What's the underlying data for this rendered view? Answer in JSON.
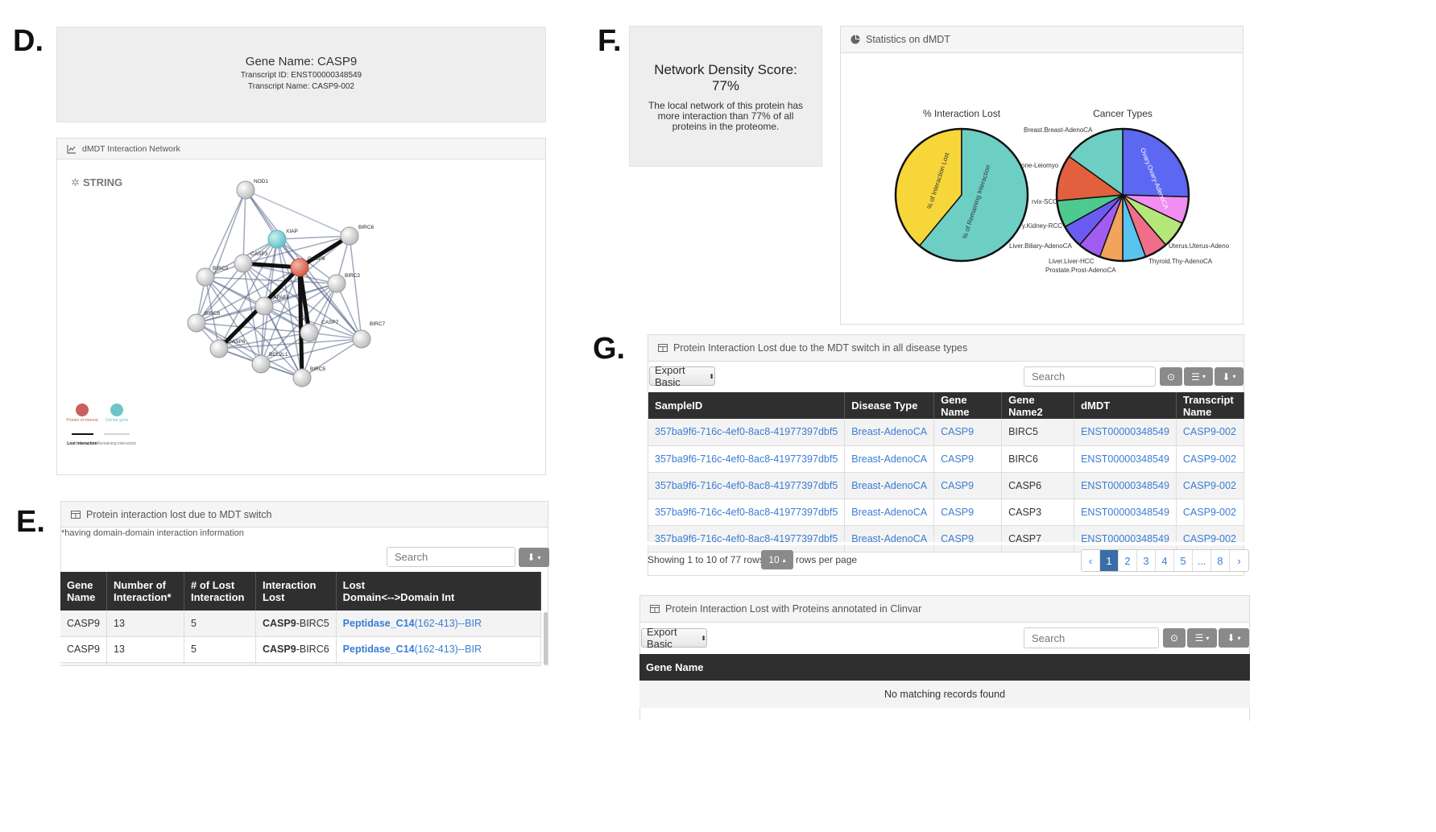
{
  "letters": {
    "d": "D.",
    "e": "E.",
    "f": "F.",
    "g": "G."
  },
  "gene_box": {
    "title": "Gene Name: CASP9",
    "transcript_id": "Transcript ID: ENST00000348549",
    "transcript_name": "Transcript Name: CASP9-002"
  },
  "network": {
    "header": "dMDT Interaction Network",
    "logo": "STRING",
    "nodes": [
      "NOD1",
      "XIAP",
      "BIRC6",
      "CASP3",
      "CASP9",
      "BIRC3",
      "BIRC2",
      "APAF1",
      "BIRC8",
      "CASP7",
      "BIRC7",
      "CASP6",
      "BCL2L1",
      "BIRC5"
    ],
    "legend": {
      "protein_of_interest": "Protein of interest",
      "clinvar_gene": "ClinVar gene",
      "lost_interaction": "Lost interaction",
      "remaining_interaction": "Remaining interaction"
    }
  },
  "density": {
    "title_line1": "Network Density Score:",
    "title_line2": "77%",
    "desc_line1": "The local network of this protein has",
    "desc_line2": "more interaction than 77% of all",
    "desc_line3": "proteins in the proteome."
  },
  "stats": {
    "header": "Statistics on dMDT",
    "colors": {
      "lost": "#f7d63a",
      "remaining": "#6dcfc4"
    }
  },
  "chart_data": [
    {
      "type": "pie",
      "title": "% Interaction Lost",
      "slices": [
        {
          "label": "% of Interaction Lost",
          "value": 39,
          "color": "#f7d63a"
        },
        {
          "label": "% of Remaining Interaction",
          "value": 61,
          "color": "#6dcfc4"
        }
      ]
    },
    {
      "type": "pie",
      "title": "Cancer Types",
      "slices": [
        {
          "label": "Ovary.Ovary-AdenoCA",
          "value": 27,
          "color": "#5c67f2"
        },
        {
          "label": "Uterus.Uterus-AdenoCA",
          "value": 7,
          "color": "#f28ef2"
        },
        {
          "label": "Thyroid.Thy-AdenoCA",
          "value": 7,
          "color": "#b5e67a"
        },
        {
          "label": "",
          "value": 6,
          "color": "#ef6e8a"
        },
        {
          "label": "Prostate.Prost-AdenoCA",
          "value": 6,
          "color": "#59c3ef"
        },
        {
          "label": "Liver.Liver-HCC",
          "value": 6,
          "color": "#f2a35c"
        },
        {
          "label": "Liver.Biliary-AdenoCA",
          "value": 6,
          "color": "#a25cf2"
        },
        {
          "label": "Kidney-RCC",
          "value": 6,
          "color": "#6a5cf2"
        },
        {
          "label": "Cervix-SCC",
          "value": 7,
          "color": "#4ec98f"
        },
        {
          "label": "Bone-Leiomyo",
          "value": 12,
          "color": "#e2603e"
        },
        {
          "label": "Breast.Breast-AdenoCA",
          "value": 16,
          "color": "#6dcfc4"
        }
      ]
    }
  ],
  "pie_visible_labels": {
    "p1_lost": "% of Interaction Lost",
    "p1_remaining": "% of Remaining Interaction",
    "p2_ovary": "Ovary.Ovary-AdenoCA",
    "p2_breast": "Breast.Breast-AdenoCA",
    "p2_bone": "one-Leiomyo",
    "p2_cervix": "rvix-SCC",
    "p2_kidney": "y.Kidney-RCC",
    "p2_biliary": "Liver.Biliary-AdenoCA",
    "p2_liver": "Liver.Liver-HCC",
    "p2_prostate": "Prostate.Prost-AdenoCA",
    "p2_thyroid": "Thyroid.Thy-AdenoCA",
    "p2_uterus": "Uterus.Uterus-Adeno"
  },
  "table_e": {
    "header": "Protein interaction lost due to MDT switch",
    "note": "*having domain-domain interaction information",
    "search_placeholder": "Search",
    "columns": [
      "Gene Name",
      "Number of Interaction*",
      "# of Lost Interaction",
      "Interaction Lost",
      "Lost Domain<-->Domain Int"
    ],
    "col_lines": [
      [
        "Gene",
        "Name"
      ],
      [
        "Number of",
        "Interaction*"
      ],
      [
        "# of Lost",
        "Interaction"
      ],
      [
        "Interaction",
        "Lost"
      ],
      [
        "Lost",
        "Domain<-->Domain Int"
      ]
    ],
    "rows": [
      {
        "gene": "CASP9",
        "num": "13",
        "lost": "5",
        "pair_a": "CASP9",
        "pair_b": "-BIRC5",
        "domain_a": "Peptidase_C14",
        "domain_b": "(162-413)--BIR"
      },
      {
        "gene": "CASP9",
        "num": "13",
        "lost": "5",
        "pair_a": "CASP9",
        "pair_b": "-BIRC6",
        "domain_a": "Peptidase_C14",
        "domain_b": "(162-413)--BIR"
      }
    ]
  },
  "table_g": {
    "header": "Protein Interaction Lost due to the MDT switch in all disease types",
    "export_label": "Export Basic",
    "search_placeholder": "Search",
    "columns": [
      "SampleID",
      "Disease Type",
      "Gene Name",
      "Gene Name2",
      "dMDT",
      "Transcript Name"
    ],
    "rows": [
      [
        "357ba9f6-716c-4ef0-8ac8-41977397dbf5",
        "Breast-AdenoCA",
        "CASP9",
        "BIRC5",
        "ENST00000348549",
        "CASP9-002"
      ],
      [
        "357ba9f6-716c-4ef0-8ac8-41977397dbf5",
        "Breast-AdenoCA",
        "CASP9",
        "BIRC6",
        "ENST00000348549",
        "CASP9-002"
      ],
      [
        "357ba9f6-716c-4ef0-8ac8-41977397dbf5",
        "Breast-AdenoCA",
        "CASP9",
        "CASP6",
        "ENST00000348549",
        "CASP9-002"
      ],
      [
        "357ba9f6-716c-4ef0-8ac8-41977397dbf5",
        "Breast-AdenoCA",
        "CASP9",
        "CASP3",
        "ENST00000348549",
        "CASP9-002"
      ],
      [
        "357ba9f6-716c-4ef0-8ac8-41977397dbf5",
        "Breast-AdenoCA",
        "CASP9",
        "CASP7",
        "ENST00000348549",
        "CASP9-002"
      ]
    ],
    "showing_text": "Showing 1 to 10 of 77 rows",
    "page_size": "10",
    "rows_per_page": "rows per page",
    "pages": [
      "‹",
      "1",
      "2",
      "3",
      "4",
      "5",
      "...",
      "8",
      "›"
    ],
    "active_page": "1"
  },
  "table_clinvar": {
    "header": "Protein Interaction Lost with Proteins annotated in Clinvar",
    "export_label": "Export Basic",
    "search_placeholder": "Search",
    "column": "Gene Name",
    "empty_text": "No matching records found"
  }
}
